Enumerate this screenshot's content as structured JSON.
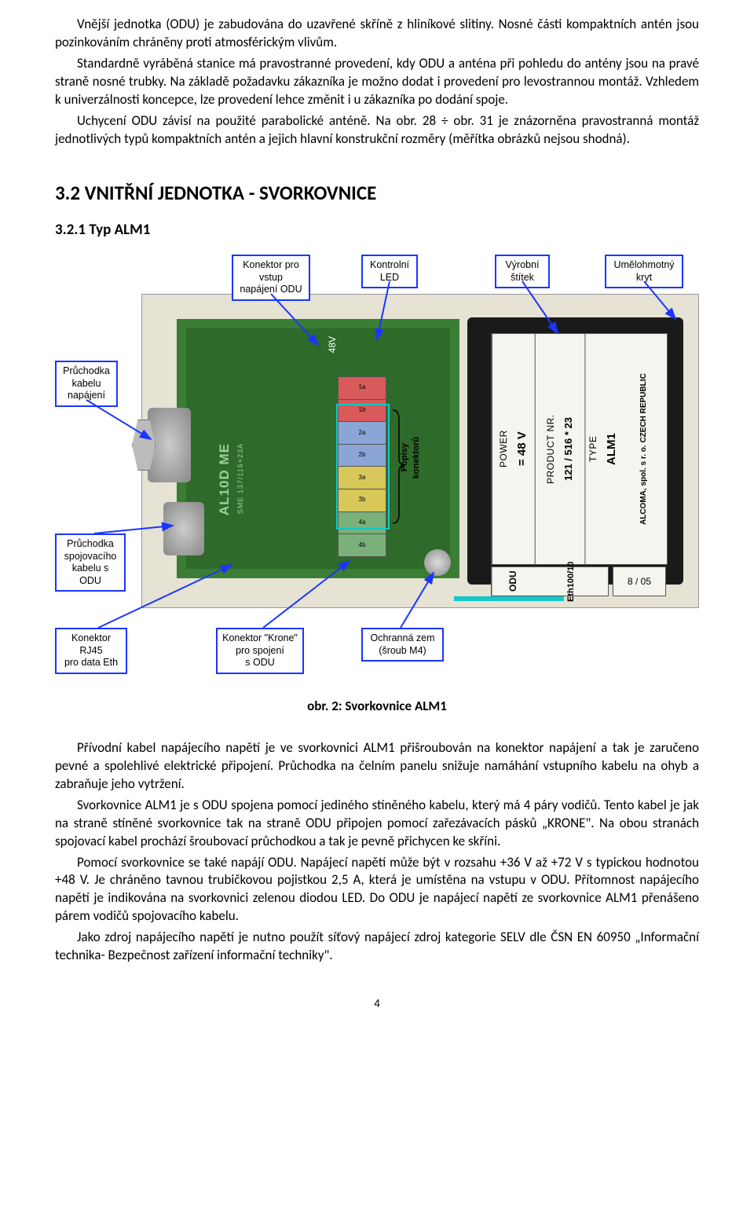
{
  "para1": "Vnější jednotka (ODU) je zabudována do uzavřené skříně z hliníkové slitiny. Nosné části kompaktních antén jsou pozinkováním chráněny proti atmosférickým vlivům.",
  "para2": "Standardně vyráběná stanice má pravostranné provedení, kdy ODU a anténa při pohledu do antény jsou na pravé straně nosné trubky. Na základě požadavku zákazníka je možno dodat i provedení pro levostrannou montáž. Vzhledem k univerzálnosti koncepce, lze provedení lehce změnit i u zákazníka po dodání spoje.",
  "para3": "Uchycení ODU závisí na použité parabolické anténě. Na obr. 28 ÷ obr. 31 je znázorněna pravostranná montáž jednotlivých typů kompaktních antén a jejich hlavní konstrukční rozměry (měřítka obrázků nejsou shodná).",
  "h2": "3.2  VNITŘNÍ JEDNOTKA - SVORKOVNICE",
  "h3": "3.2.1  Typ ALM1",
  "caption": "obr. 2: Svorkovnice ALM1",
  "para4": "Přívodní kabel napájecího napětí je ve svorkovnici ALM1 přišroubován na konektor napájení a tak je zaručeno pevné a spolehlivé elektrické připojení. Průchodka na čelním panelu snižuje namáhání vstupního kabelu na ohyb a zabraňuje jeho vytržení.",
  "para5": "Svorkovnice ALM1 je s ODU spojena pomocí jediného stíněného kabelu, který má 4 páry vodičů. Tento kabel je jak na straně stíněné svorkovnice tak na straně ODU připojen pomocí zařezávacích pásků „KRONE\". Na obou stranách spojovací kabel prochází šroubovací průchodkou a tak je pevně přichycen ke skříni.",
  "para6": "Pomocí svorkovnice se také napájí ODU. Napájecí napětí může být v rozsahu +36 V až +72 V s typickou hodnotou +48 V. Je chráněno tavnou trubičkovou pojistkou 2,5 A, která je umístěna na vstupu v ODU. Přítomnost napájecího napětí je indikována na svorkovnici zelenou diodou LED. Do ODU je napájecí napětí ze svorkovnice ALM1 přenášeno párem vodičů spojovacího kabelu.",
  "para7": "Jako zdroj napájecího napětí je nutno použít síťový napájecí zdroj kategorie SELV dle ČSN EN 60950 „Informační technika- Bezpečnost zařízení informační techniky\".",
  "pagenum": "4",
  "callouts": {
    "top1": "Konektor pro\nvstup\nnapájení ODU",
    "top2": "Kontrolní\nLED",
    "top3": "Výrobní\nštítek",
    "top4": "Umělohmotný\nkryt",
    "left1": "Průchodka\nkabelu\nnapájení",
    "left2": "Průchodka\nspojovacího\nkabelu s ODU",
    "bot1": "Konektor\nRJ45\npro data Eth",
    "bot2": "Konektor \"Krone\"\npro spojení\ns ODU",
    "bot3": "Ochranná zem\n(šroub M4)",
    "mid": "Popisy\nkonektorů"
  },
  "label": {
    "company": "ALCOMA, spol. s r. o.  CZECH REPUBLIC",
    "type_k": "TYPE",
    "type_v": "ALM1",
    "prod_k": "PRODUCT NR.",
    "prod_v": "121 / 516 * 23",
    "power_k": "POWER",
    "power_v": "= 48 V",
    "odu": "ODU",
    "eth": "Eth100/10",
    "date": "8 / 05"
  },
  "terminals": [
    "1a",
    "1b",
    "2a",
    "2b",
    "3a",
    "3b",
    "4a",
    "4b"
  ],
  "v48": "48V",
  "silkscreen1": "AL10D ME",
  "silkscreen2": "SME  137/116+23A",
  "colors": {
    "callout_border": "#1b35ff",
    "highlight_border": "#13c8c8",
    "arrow": "#1b35ff"
  }
}
